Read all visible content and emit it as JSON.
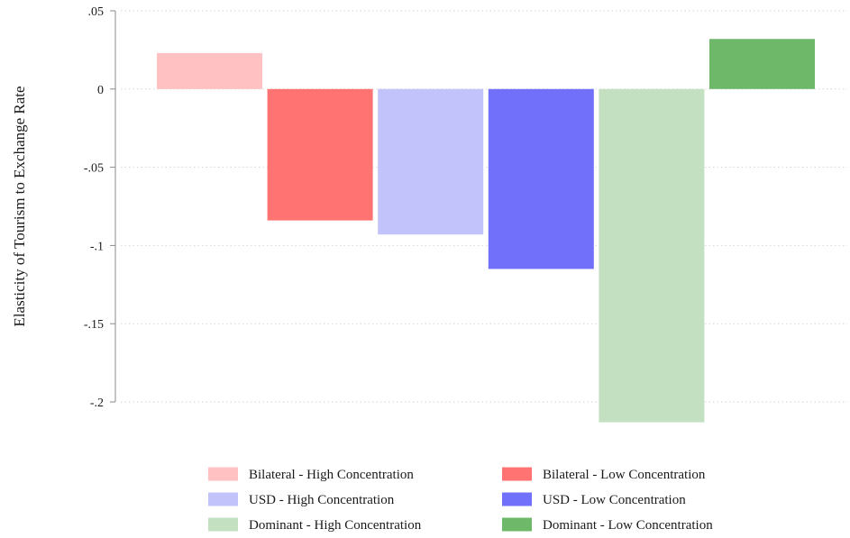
{
  "chart_data": {
    "type": "bar",
    "title": "",
    "xlabel": "",
    "ylabel": "Elasticity of Tourism to Exchange Rate",
    "ylim": [
      -0.2,
      0.05
    ],
    "yticks": [
      {
        "value": 0.05,
        "label": ".05"
      },
      {
        "value": 0,
        "label": "0"
      },
      {
        "value": -0.05,
        "label": "-.05"
      },
      {
        "value": -0.1,
        "label": "-.1"
      },
      {
        "value": -0.15,
        "label": "-.15"
      },
      {
        "value": -0.2,
        "label": "-.2"
      }
    ],
    "grid": true,
    "legend_position": "bottom",
    "series": [
      {
        "name": "Bilateral - High Concentration",
        "value": 0.023,
        "color": "#ffc1c1"
      },
      {
        "name": "Bilateral - Low Concentration",
        "value": -0.084,
        "color": "#ff7373"
      },
      {
        "name": "USD - High Concentration",
        "value": -0.093,
        "color": "#c3c3fc"
      },
      {
        "name": "USD - Low Concentration",
        "value": -0.115,
        "color": "#7070fa"
      },
      {
        "name": "Dominant - High Concentration",
        "value": -0.213,
        "color": "#c3e0c1"
      },
      {
        "name": "Dominant - Low Concentration",
        "value": 0.032,
        "color": "#6eb86a"
      }
    ]
  }
}
